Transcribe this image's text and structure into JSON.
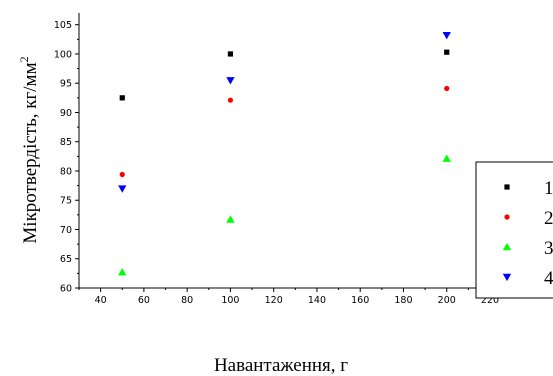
{
  "chart_data": {
    "type": "scatter",
    "xlabel": "Навантаження, г",
    "ylabel": "Мікротвердість, кг/мм",
    "ylabel_superscript": "2",
    "xlim": [
      30,
      220
    ],
    "ylim": [
      60,
      107
    ],
    "x_ticks": [
      40,
      60,
      80,
      100,
      120,
      140,
      160,
      180,
      200,
      220
    ],
    "y_ticks": [
      60,
      65,
      70,
      75,
      80,
      85,
      90,
      95,
      100,
      105
    ],
    "grid": false,
    "legend_position": "right",
    "series": [
      {
        "name": "1",
        "marker": "square",
        "color": "#000000",
        "x": [
          50,
          100,
          200
        ],
        "y": [
          92.5,
          100,
          100.3
        ]
      },
      {
        "name": "2",
        "marker": "circle",
        "color": "#ff0000",
        "x": [
          50,
          100,
          200
        ],
        "y": [
          79.4,
          92.1,
          94.1
        ]
      },
      {
        "name": "3",
        "marker": "triangle-up",
        "color": "#00ff00",
        "x": [
          50,
          100,
          200
        ],
        "y": [
          62.7,
          71.7,
          82.1
        ]
      },
      {
        "name": "4",
        "marker": "triangle-down",
        "color": "#0000ff",
        "x": [
          50,
          100,
          200
        ],
        "y": [
          77,
          95.5,
          103.2
        ]
      }
    ]
  }
}
